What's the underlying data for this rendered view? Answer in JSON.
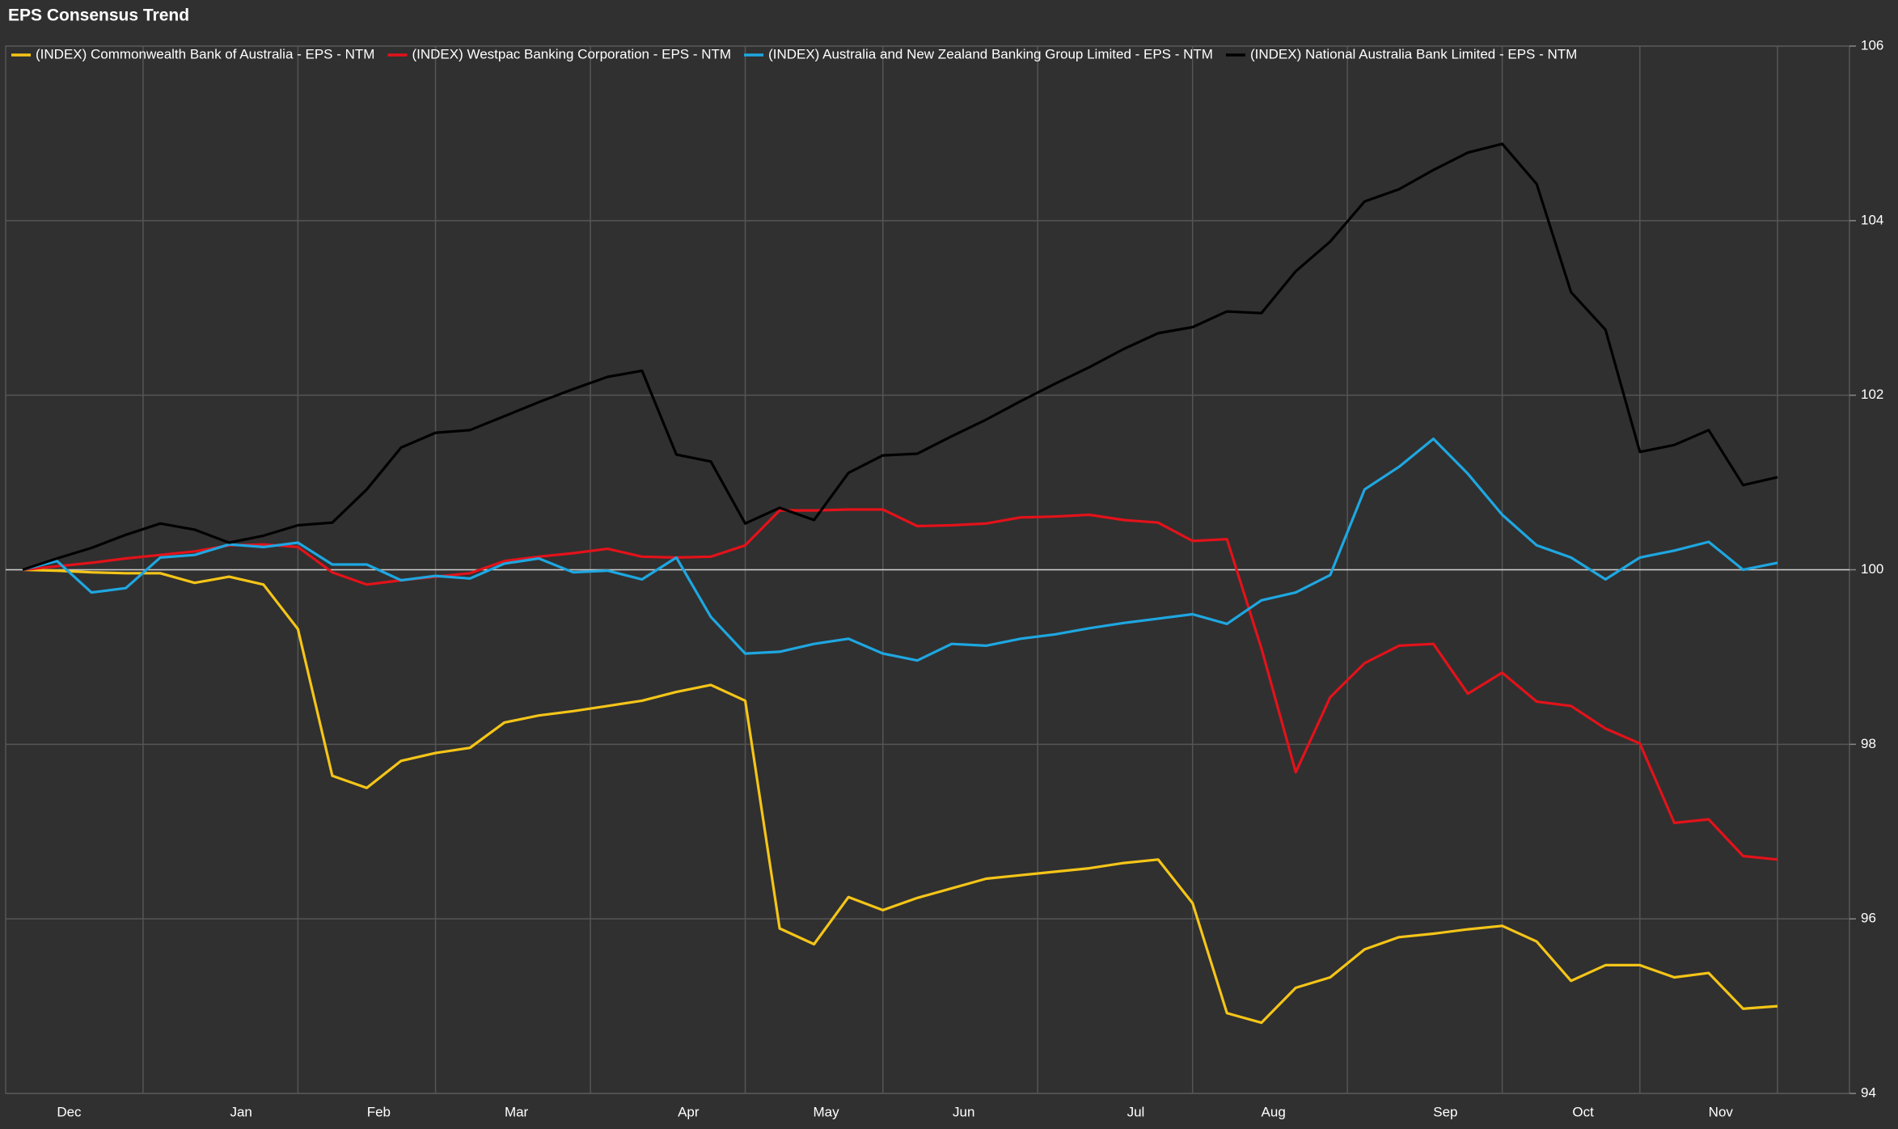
{
  "chart_data": {
    "type": "line",
    "title": "EPS Consensus Trend",
    "categories": [
      null,
      "Dec",
      null,
      null,
      null,
      null,
      "Jan",
      null,
      null,
      null,
      "Feb",
      null,
      null,
      null,
      "Mar",
      null,
      null,
      null,
      null,
      "Apr",
      null,
      null,
      null,
      "May",
      null,
      null,
      null,
      "Jun",
      null,
      null,
      null,
      null,
      "Jul",
      null,
      null,
      null,
      "Aug",
      null,
      null,
      null,
      null,
      "Sep",
      null,
      null,
      null,
      "Oct",
      null,
      null,
      null,
      "Nov",
      null,
      null
    ],
    "series": [
      {
        "name": "(INDEX) Commonwealth Bank of Australia - EPS - NTM",
        "color": "#f5c518",
        "values": [
          100,
          99.99,
          99.97,
          99.96,
          99.96,
          99.85,
          99.92,
          99.83,
          99.32,
          97.64,
          97.5,
          97.81,
          97.9,
          97.96,
          98.25,
          98.33,
          98.38,
          98.44,
          98.5,
          98.6,
          98.68,
          98.5,
          95.89,
          95.71,
          96.25,
          96.1,
          96.24,
          96.35,
          96.46,
          96.5,
          96.54,
          96.58,
          96.64,
          96.68,
          96.18,
          94.92,
          94.81,
          95.21,
          95.33,
          95.65,
          95.79,
          95.83,
          95.88,
          95.92,
          95.74,
          95.29,
          95.47,
          95.47,
          95.33,
          95.38,
          94.97,
          95.0
        ]
      },
      {
        "name": "(INDEX) Westpac Banking Corporation - EPS - NTM",
        "color": "#e3121a",
        "values": [
          100,
          100.04,
          100.08,
          100.13,
          100.17,
          100.21,
          100.28,
          100.29,
          100.26,
          99.97,
          99.83,
          99.88,
          99.92,
          99.96,
          100.1,
          100.15,
          100.19,
          100.24,
          100.15,
          100.14,
          100.15,
          100.28,
          100.68,
          100.68,
          100.69,
          100.69,
          100.5,
          100.51,
          100.53,
          100.6,
          100.61,
          100.63,
          100.57,
          100.54,
          100.33,
          100.35,
          99.1,
          97.68,
          98.54,
          98.93,
          99.13,
          99.15,
          98.58,
          98.82,
          98.49,
          98.44,
          98.18,
          98.01,
          97.1,
          97.14,
          96.72,
          96.68
        ]
      },
      {
        "name": "(INDEX) Australia and New Zealand Banking Group Limited - EPS - NTM",
        "color": "#1ea7e1",
        "values": [
          100,
          100.1,
          99.74,
          99.79,
          100.14,
          100.17,
          100.29,
          100.26,
          100.31,
          100.06,
          100.06,
          99.88,
          99.93,
          99.9,
          100.07,
          100.13,
          99.97,
          99.99,
          99.89,
          100.14,
          99.46,
          99.04,
          99.06,
          99.15,
          99.21,
          99.04,
          98.96,
          99.15,
          99.13,
          99.21,
          99.26,
          99.33,
          99.39,
          99.44,
          99.49,
          99.38,
          99.65,
          99.74,
          99.94,
          100.92,
          101.18,
          101.5,
          101.1,
          100.63,
          100.28,
          100.14,
          99.89,
          100.14,
          100.22,
          100.32,
          100.0,
          100.08
        ]
      },
      {
        "name": "(INDEX) National Australia Bank Limited - EPS - NTM",
        "color": "#000000",
        "values": [
          100,
          100.13,
          100.25,
          100.4,
          100.53,
          100.46,
          100.31,
          100.39,
          100.51,
          100.54,
          100.92,
          101.4,
          101.57,
          101.6,
          101.76,
          101.92,
          102.07,
          102.21,
          102.28,
          101.32,
          101.24,
          100.53,
          100.71,
          100.57,
          101.11,
          101.31,
          101.33,
          101.53,
          101.72,
          101.93,
          102.13,
          102.32,
          102.53,
          102.71,
          102.78,
          102.96,
          102.94,
          103.42,
          103.76,
          104.22,
          104.36,
          104.58,
          104.78,
          104.88,
          104.42,
          103.18,
          102.75,
          101.35,
          101.43,
          101.6,
          100.97,
          101.06
        ]
      }
    ],
    "ylim": [
      94,
      106
    ],
    "yticks": [
      94,
      96,
      98,
      100,
      102,
      104,
      106
    ],
    "grid": true,
    "reference_line": 100,
    "legend": "top-left"
  }
}
